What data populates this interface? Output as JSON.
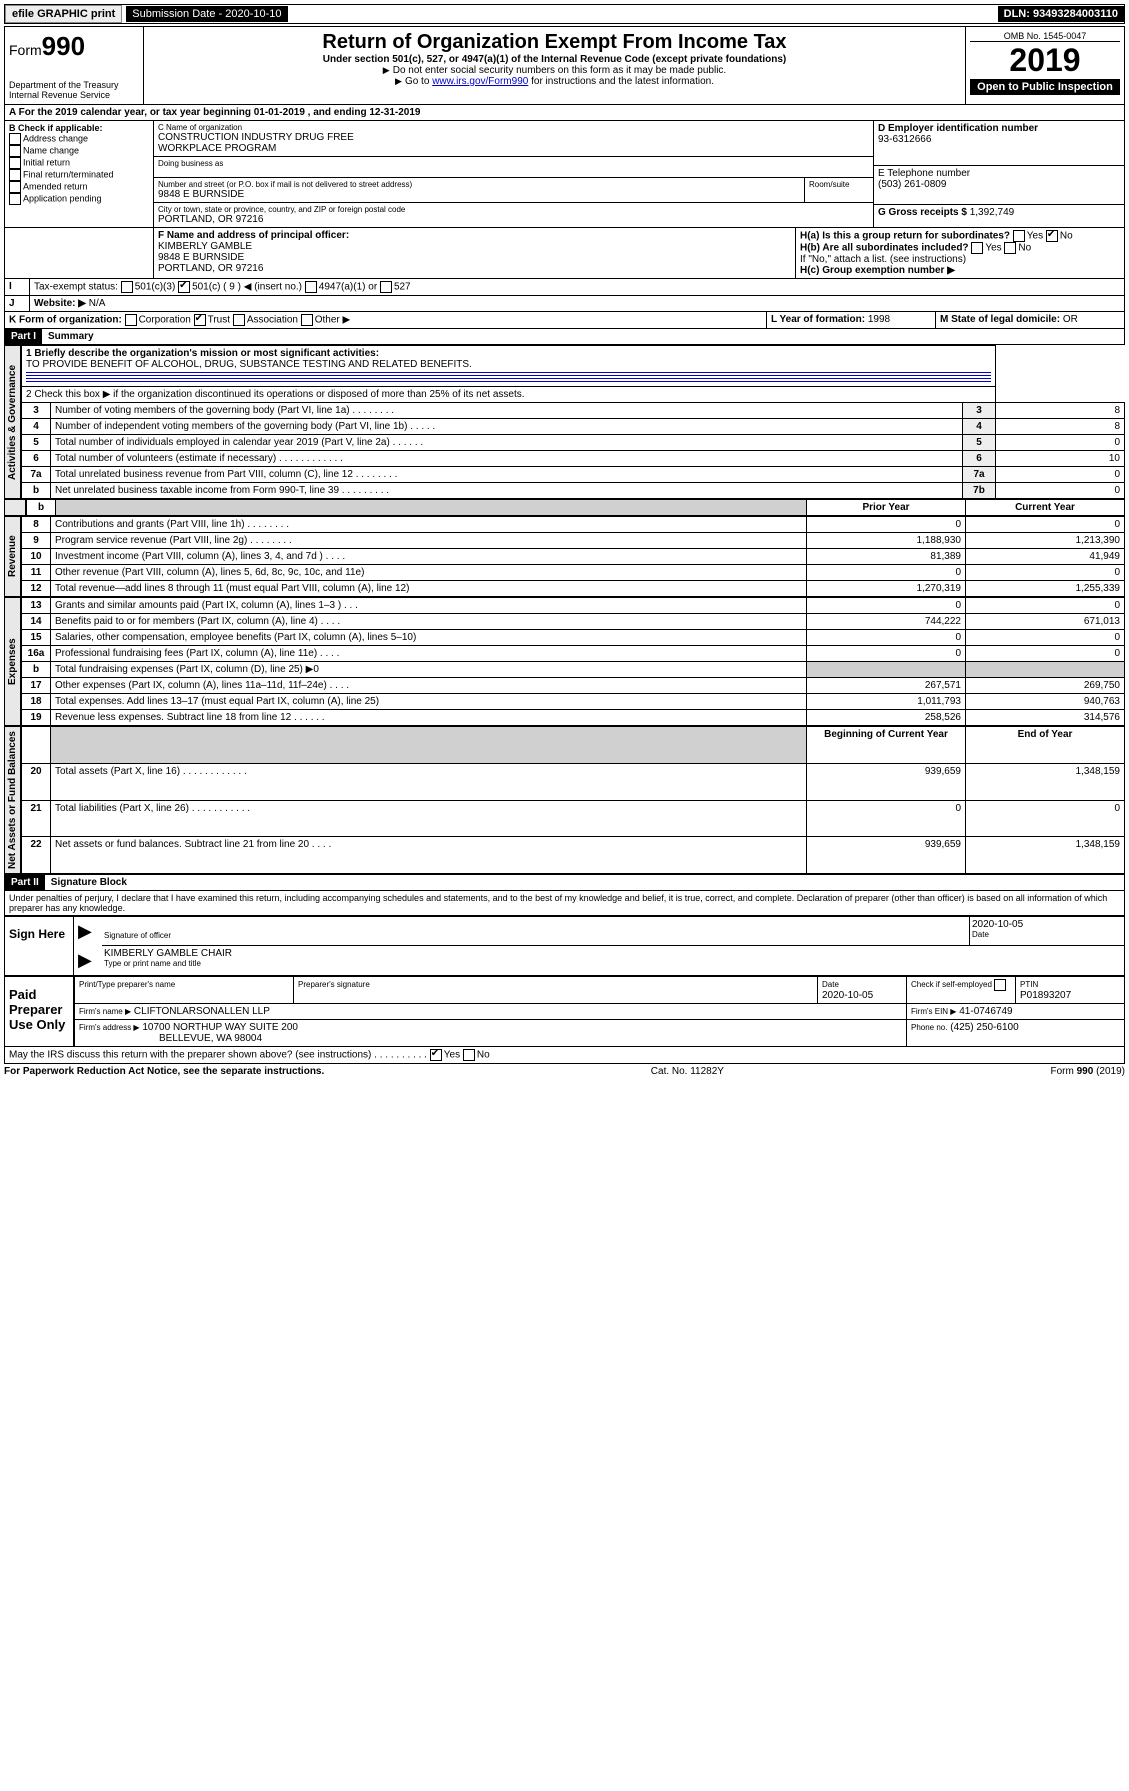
{
  "top": {
    "efile": "efile GRAPHIC print",
    "submission_label": "Submission Date - 2020-10-10",
    "dln": "DLN: 93493284003110"
  },
  "header": {
    "form_prefix": "Form",
    "form_no": "990",
    "dept1": "Department of the Treasury",
    "dept2": "Internal Revenue Service",
    "title": "Return of Organization Exempt From Income Tax",
    "subtitle": "Under section 501(c), 527, or 4947(a)(1) of the Internal Revenue Code (except private foundations)",
    "note1": "Do not enter social security numbers on this form as it may be made public.",
    "note2_pre": "Go to ",
    "note2_link": "www.irs.gov/Form990",
    "note2_post": " for instructions and the latest information.",
    "omb": "OMB No. 1545-0047",
    "year": "2019",
    "open": "Open to Public Inspection"
  },
  "A": {
    "text": "For the 2019 calendar year, or tax year beginning 01-01-2019   , and ending 12-31-2019"
  },
  "B": {
    "label": "B Check if applicable:",
    "opts": [
      "Address change",
      "Name change",
      "Initial return",
      "Final return/terminated",
      "Amended return",
      "Application pending"
    ]
  },
  "C": {
    "name_label": "C Name of organization",
    "name1": "CONSTRUCTION INDUSTRY DRUG FREE",
    "name2": "WORKPLACE PROGRAM",
    "dba_label": "Doing business as",
    "addr_label": "Number and street (or P.O. box if mail is not delivered to street address)",
    "room_label": "Room/suite",
    "addr": "9848 E BURNSIDE",
    "city_label": "City or town, state or province, country, and ZIP or foreign postal code",
    "city": "PORTLAND, OR  97216"
  },
  "D": {
    "label": "D Employer identification number",
    "val": "93-6312666"
  },
  "E": {
    "label": "E Telephone number",
    "val": "(503) 261-0809"
  },
  "G": {
    "label": "G Gross receipts $",
    "val": "1,392,749"
  },
  "F": {
    "label": "F  Name and address of principal officer:",
    "l1": "KIMBERLY GAMBLE",
    "l2": "9848 E BURNSIDE",
    "l3": "PORTLAND, OR  97216"
  },
  "H": {
    "a": "H(a)  Is this a group return for subordinates?",
    "b": "H(b)  Are all subordinates included?",
    "bnote": "If \"No,\" attach a list. (see instructions)",
    "c": "H(c)  Group exemption number ▶"
  },
  "I": {
    "label": "Tax-exempt status:",
    "o1": "501(c)(3)",
    "o2": "501(c) ( 9 ) ◀ (insert no.)",
    "o3": "4947(a)(1) or",
    "o4": "527"
  },
  "J": {
    "label": "Website: ▶",
    "val": "N/A"
  },
  "K": {
    "label": "K Form of organization:",
    "o1": "Corporation",
    "o2": "Trust",
    "o3": "Association",
    "o4": "Other ▶"
  },
  "L": {
    "label": "L Year of formation:",
    "val": "1998"
  },
  "M": {
    "label": "M State of legal domicile:",
    "val": "OR"
  },
  "part1": {
    "bar": "Part I",
    "title": "Summary",
    "q1": "1  Briefly describe the organization's mission or most significant activities:",
    "mission": "TO PROVIDE BENEFIT OF ALCOHOL, DRUG, SUBSTANCE TESTING AND RELATED BENEFITS.",
    "q2": "2   Check this box ▶        if the organization discontinued its operations or disposed of more than 25% of its net assets.",
    "rows_gov": [
      {
        "n": "3",
        "t": "Number of voting members of the governing body (Part VI, line 1a)   .    .    .    .    .    .    .    .",
        "box": "3",
        "v": "8"
      },
      {
        "n": "4",
        "t": "Number of independent voting members of the governing body (Part VI, line 1b)   .    .    .    .    .",
        "box": "4",
        "v": "8"
      },
      {
        "n": "5",
        "t": "Total number of individuals employed in calendar year 2019 (Part V, line 2a)   .    .    .    .    .    .",
        "box": "5",
        "v": "0"
      },
      {
        "n": "6",
        "t": "Total number of volunteers (estimate if necessary)   .    .    .    .    .    .    .    .    .    .    .    .",
        "box": "6",
        "v": "10"
      },
      {
        "n": "7a",
        "t": "Total unrelated business revenue from Part VIII, column (C), line 12   .    .    .    .    .    .    .    .",
        "box": "7a",
        "v": "0"
      },
      {
        "n": "b",
        "t": "Net unrelated business taxable income from Form 990-T, line 39   .    .    .    .    .    .    .    .    .",
        "box": "7b",
        "v": "0"
      }
    ],
    "head_prior": "Prior Year",
    "head_curr": "Current Year",
    "rows_rev": [
      {
        "n": "8",
        "t": "Contributions and grants (Part VIII, line 1h)   .    .    .    .    .    .    .    .",
        "p": "0",
        "c": "0"
      },
      {
        "n": "9",
        "t": "Program service revenue (Part VIII, line 2g)   .    .    .    .    .    .    .    .",
        "p": "1,188,930",
        "c": "1,213,390"
      },
      {
        "n": "10",
        "t": "Investment income (Part VIII, column (A), lines 3, 4, and 7d )   .    .    .    .",
        "p": "81,389",
        "c": "41,949"
      },
      {
        "n": "11",
        "t": "Other revenue (Part VIII, column (A), lines 5, 6d, 8c, 9c, 10c, and 11e)",
        "p": "0",
        "c": "0"
      },
      {
        "n": "12",
        "t": "Total revenue—add lines 8 through 11 (must equal Part VIII, column (A), line 12)",
        "p": "1,270,319",
        "c": "1,255,339"
      }
    ],
    "rows_exp": [
      {
        "n": "13",
        "t": "Grants and similar amounts paid (Part IX, column (A), lines 1–3 )   .    .    .",
        "p": "0",
        "c": "0"
      },
      {
        "n": "14",
        "t": "Benefits paid to or for members (Part IX, column (A), line 4)   .    .    .    .",
        "p": "744,222",
        "c": "671,013"
      },
      {
        "n": "15",
        "t": "Salaries, other compensation, employee benefits (Part IX, column (A), lines 5–10)",
        "p": "0",
        "c": "0"
      },
      {
        "n": "16a",
        "t": "Professional fundraising fees (Part IX, column (A), line 11e)   .    .    .    .",
        "p": "0",
        "c": "0"
      }
    ],
    "row16b": {
      "n": "b",
      "t": "Total fundraising expenses (Part IX, column (D), line 25) ▶0"
    },
    "rows_exp2": [
      {
        "n": "17",
        "t": "Other expenses (Part IX, column (A), lines 11a–11d, 11f–24e)   .    .    .    .",
        "p": "267,571",
        "c": "269,750"
      },
      {
        "n": "18",
        "t": "Total expenses. Add lines 13–17 (must equal Part IX, column (A), line 25)",
        "p": "1,011,793",
        "c": "940,763"
      },
      {
        "n": "19",
        "t": "Revenue less expenses. Subtract line 18 from line 12   .    .    .    .    .    .",
        "p": "258,526",
        "c": "314,576"
      }
    ],
    "head_begin": "Beginning of Current Year",
    "head_end": "End of Year",
    "rows_net": [
      {
        "n": "20",
        "t": "Total assets (Part X, line 16)   .    .    .    .    .    .    .    .    .    .    .    .",
        "p": "939,659",
        "c": "1,348,159"
      },
      {
        "n": "21",
        "t": "Total liabilities (Part X, line 26)   .    .    .    .    .    .    .    .    .    .    .",
        "p": "0",
        "c": "0"
      },
      {
        "n": "22",
        "t": "Net assets or fund balances. Subtract line 21 from line 20   .    .    .    .",
        "p": "939,659",
        "c": "1,348,159"
      }
    ],
    "side_gov": "Activities & Governance",
    "side_rev": "Revenue",
    "side_exp": "Expenses",
    "side_net": "Net Assets or Fund Balances"
  },
  "part2": {
    "bar": "Part II",
    "title": "Signature Block",
    "perjury": "Under penalties of perjury, I declare that I have examined this return, including accompanying schedules and statements, and to the best of my knowledge and belief, it is true, correct, and complete. Declaration of preparer (other than officer) is based on all information of which preparer has any knowledge.",
    "sign_here": "Sign Here",
    "sig_officer": "Signature of officer",
    "sig_date": "2020-10-05",
    "date_label": "Date",
    "name_title": "KIMBERLY GAMBLE  CHAIR",
    "name_title_label": "Type or print name and title",
    "paid": "Paid Preparer Use Only",
    "h1": "Print/Type preparer's name",
    "h2": "Preparer's signature",
    "h3": "Date",
    "h4": "Check         if self-employed",
    "h5": "PTIN",
    "date2": "2020-10-05",
    "ptin": "P01893207",
    "firm_name_label": "Firm's name    ▶",
    "firm_name": "CLIFTONLARSONALLEN LLP",
    "firm_ein_label": "Firm's EIN ▶",
    "firm_ein": "41-0746749",
    "firm_addr_label": "Firm's address ▶",
    "firm_addr1": "10700 NORTHUP WAY SUITE 200",
    "firm_addr2": "BELLEVUE, WA  98004",
    "phone_label": "Phone no.",
    "phone": "(425) 250-6100",
    "discuss": "May the IRS discuss this return with the preparer shown above? (see instructions)   .    .    .    .    .    .    .    .    .    .",
    "yes": "Yes",
    "no": "No"
  },
  "footer": {
    "l": "For Paperwork Reduction Act Notice, see the separate instructions.",
    "c": "Cat. No. 11282Y",
    "r": "Form 990 (2019)"
  }
}
